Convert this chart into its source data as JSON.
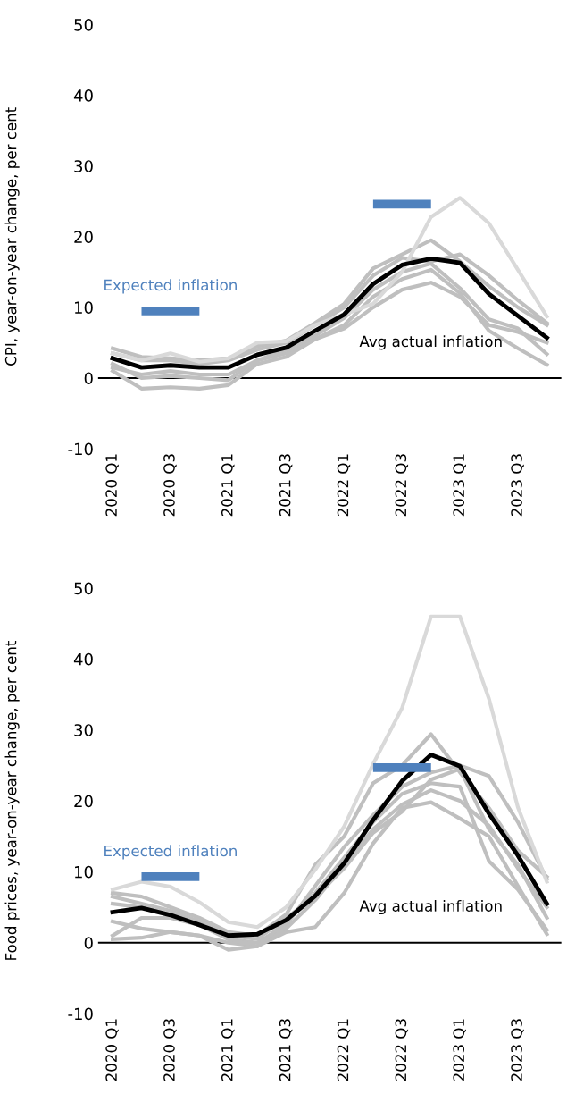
{
  "chart_data": [
    {
      "type": "line",
      "ylabel": "CPI, year-on-year change, per cent",
      "categories": [
        "2020 Q1",
        null,
        "2020 Q3",
        null,
        "2021 Q1",
        null,
        "2021 Q3",
        null,
        "2022 Q1",
        null,
        "2022 Q3",
        null,
        "2023 Q1",
        null,
        "2023 Q3",
        null
      ],
      "ylim": [
        -10,
        50
      ],
      "yticks": [
        -10,
        0,
        10,
        20,
        30,
        40,
        50
      ],
      "grid": false,
      "legend": false,
      "series": [
        {
          "color": "#bfbfbf",
          "values": [
            4.2,
            3.0,
            2.8,
            2.5,
            2.8,
            4.5,
            5.3,
            7.8,
            10.5,
            15.5,
            17.5,
            19.5,
            16.5,
            13.0,
            10.0,
            7.5
          ]
        },
        {
          "color": "#bfbfbf",
          "values": [
            3.5,
            2.5,
            2.5,
            2.0,
            2.5,
            4.0,
            5.0,
            7.5,
            10.0,
            14.5,
            17.0,
            16.5,
            17.5,
            14.5,
            11.0,
            7.8
          ]
        },
        {
          "color": "#bfbfbf",
          "values": [
            1.5,
            0.5,
            1.0,
            0.5,
            0.5,
            2.5,
            3.5,
            5.5,
            7.0,
            10.0,
            12.5,
            13.5,
            11.5,
            7.5,
            6.5,
            5.0
          ]
        },
        {
          "color": "#bfbfbf",
          "values": [
            1.0,
            -1.5,
            -1.3,
            -1.5,
            -1.0,
            2.0,
            3.0,
            5.5,
            7.5,
            11.5,
            14.0,
            15.3,
            12.0,
            6.7,
            4.2,
            1.9
          ]
        },
        {
          "color": "#bfbfbf",
          "values": [
            2.0,
            0.0,
            0.3,
            0.0,
            -0.3,
            2.5,
            4.0,
            6.0,
            8.5,
            12.5,
            15.0,
            16.2,
            12.7,
            8.3,
            7.0,
            3.4
          ]
        },
        {
          "color": "#d9d9d9",
          "values": [
            3.5,
            2.5,
            3.5,
            2.3,
            2.8,
            5.0,
            5.2,
            7.5,
            9.0,
            10.5,
            15.0,
            22.8,
            25.5,
            21.9,
            15.3,
            8.7
          ]
        },
        {
          "name": "Avg actual inflation",
          "color": "#000000",
          "values": [
            2.8,
            1.5,
            1.8,
            1.5,
            1.5,
            3.3,
            4.3,
            6.7,
            9.0,
            13.3,
            16.0,
            16.9,
            16.3,
            11.9,
            8.8,
            5.7
          ]
        },
        {
          "name": "Expected inflation",
          "type": "step",
          "color": "#4f81bd",
          "values": [
            null,
            9.5,
            9.5,
            9.5,
            null,
            null,
            null,
            null,
            null,
            24.6,
            24.6,
            24.6,
            null,
            null,
            null,
            null
          ]
        }
      ],
      "ref_lines": [
        {
          "axis": "y",
          "value": 0,
          "color": "#000000"
        }
      ]
    },
    {
      "type": "line",
      "ylabel": "Food prices, year-on-year change, per cent",
      "categories": [
        "2020 Q1",
        null,
        "2020 Q3",
        null,
        "2021 Q1",
        null,
        "2021 Q3",
        null,
        "2022 Q1",
        null,
        "2022 Q3",
        null,
        "2023 Q1",
        null,
        "2023 Q3",
        null
      ],
      "ylim": [
        -10,
        50
      ],
      "yticks": [
        -10,
        0,
        10,
        20,
        30,
        40,
        50
      ],
      "grid": false,
      "legend": false,
      "series": [
        {
          "color": "#bfbfbf",
          "values": [
            7.0,
            6.5,
            5.0,
            3.5,
            1.5,
            1.0,
            4.0,
            11.0,
            15.0,
            22.5,
            25.0,
            29.4,
            24.0,
            19.0,
            13.0,
            9.3
          ]
        },
        {
          "color": "#bfbfbf",
          "values": [
            5.5,
            5.0,
            4.0,
            3.0,
            0.5,
            0.0,
            2.5,
            8.0,
            13.5,
            18.0,
            22.0,
            24.0,
            25.0,
            23.5,
            17.0,
            9.0
          ]
        },
        {
          "color": "#bfbfbf",
          "values": [
            3.0,
            2.0,
            1.5,
            1.0,
            0.0,
            -0.5,
            2.0,
            6.0,
            11.0,
            16.0,
            19.5,
            21.5,
            20.0,
            16.5,
            10.5,
            5.0
          ]
        },
        {
          "color": "#bfbfbf",
          "values": [
            1.0,
            3.5,
            3.5,
            2.5,
            0.5,
            -0.5,
            1.5,
            2.2,
            7.0,
            14.0,
            19.0,
            19.8,
            17.5,
            15.0,
            8.0,
            1.2
          ]
        },
        {
          "color": "#bfbfbf",
          "values": [
            0.5,
            0.7,
            1.5,
            1.0,
            -1.0,
            -0.5,
            3.0,
            7.0,
            12.0,
            17.0,
            21.0,
            22.5,
            22.0,
            11.5,
            7.5,
            1.8
          ]
        },
        {
          "color": "#bfbfbf",
          "values": [
            6.5,
            5.5,
            4.5,
            3.0,
            1.0,
            0.5,
            3.5,
            6.5,
            10.5,
            15.5,
            18.5,
            23.0,
            24.5,
            16.0,
            11.0,
            3.5
          ]
        },
        {
          "color": "#d9d9d9",
          "values": [
            7.5,
            8.6,
            7.9,
            5.7,
            2.9,
            2.2,
            5.0,
            10.3,
            16.4,
            25.2,
            33.1,
            46,
            46,
            34.4,
            19.1,
            8.6
          ]
        },
        {
          "name": "Avg actual inflation",
          "color": "#000000",
          "values": [
            4.3,
            4.9,
            3.9,
            2.5,
            1.0,
            1.2,
            3.2,
            6.6,
            11.2,
            17.3,
            22.8,
            26.5,
            24.9,
            18.2,
            12.3,
            5.5
          ]
        },
        {
          "name": "Expected inflation",
          "type": "step",
          "color": "#4f81bd",
          "values": [
            null,
            9.3,
            9.3,
            9.3,
            null,
            null,
            null,
            null,
            null,
            24.7,
            24.7,
            24.7,
            null,
            null,
            null,
            null
          ]
        }
      ],
      "ref_lines": [
        {
          "axis": "y",
          "value": 0,
          "color": "#000000"
        }
      ]
    }
  ]
}
